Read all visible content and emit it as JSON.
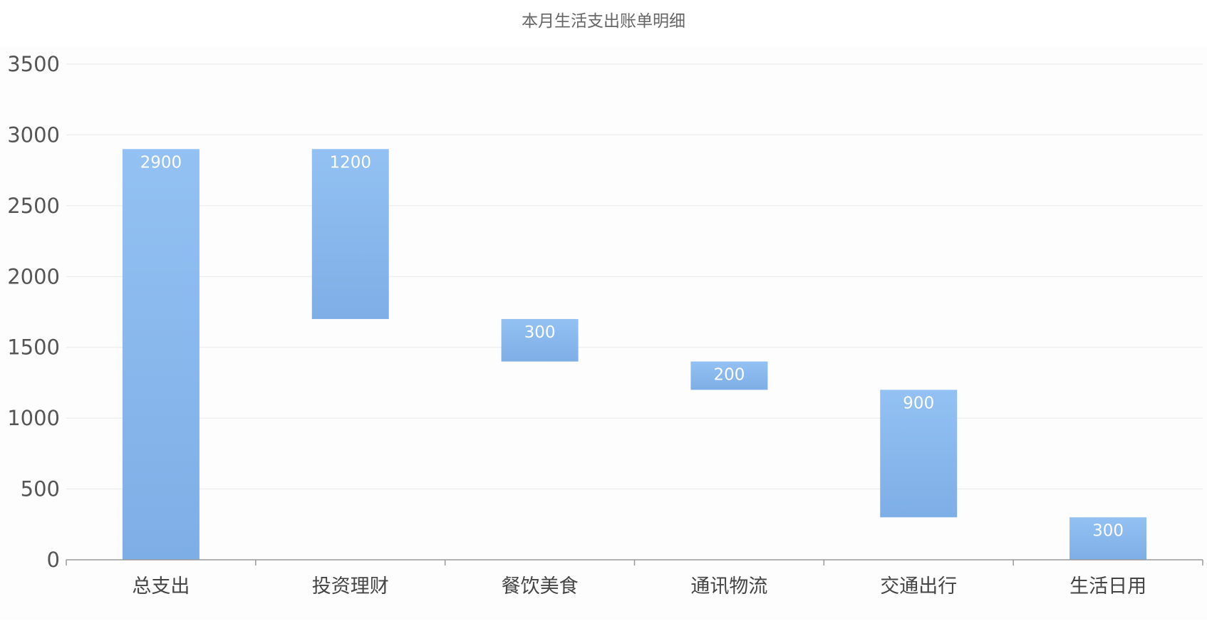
{
  "chart_data": {
    "type": "bar",
    "subtype": "waterfall",
    "title": "本月生活支出账单明细",
    "xlabel": "",
    "ylabel": "",
    "categories": [
      "总支出",
      "投资理财",
      "餐饮美食",
      "通讯物流",
      "交通出行",
      "生活日用"
    ],
    "values": [
      2900,
      1200,
      300,
      200,
      900,
      300
    ],
    "bases": [
      0,
      1700,
      1400,
      1200,
      300,
      0
    ],
    "ylim": [
      0,
      3500
    ],
    "yticks": [
      0,
      500,
      1000,
      1500,
      2000,
      2500,
      3000,
      3500
    ],
    "grid": true,
    "legend": "none",
    "colors": {
      "bar_top": "#93c1f3",
      "bar_bottom": "#7eaee6",
      "bar_label": "#ffffff"
    }
  }
}
